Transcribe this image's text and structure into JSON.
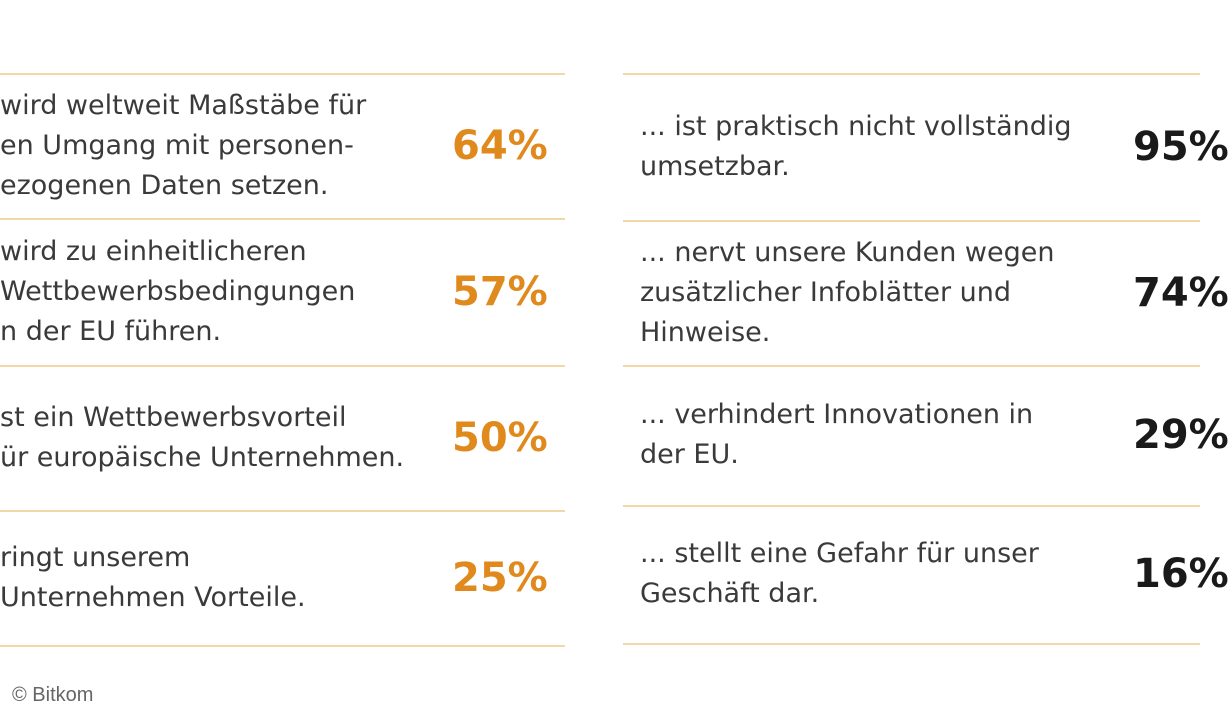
{
  "left": {
    "rows": [
      {
        "lines": [
          "wird weltweit Maßstäbe für",
          "en Umgang mit personen-",
          "ezogenen Daten setzen."
        ],
        "value": "64%"
      },
      {
        "lines": [
          "wird zu einheitlicheren",
          "Wettbewerbsbedingungen",
          "n der EU führen."
        ],
        "value": "57%"
      },
      {
        "lines": [
          "st ein Wettbewerbsvorteil",
          "ür europäische Unternehmen."
        ],
        "value": "50%"
      },
      {
        "lines": [
          "ringt unserem",
          "Unternehmen Vorteile."
        ],
        "value": "25%"
      }
    ]
  },
  "right": {
    "rows": [
      {
        "lines": [
          "... ist praktisch nicht vollständig",
          "umsetzbar."
        ],
        "value": "95%"
      },
      {
        "lines": [
          "... nervt unsere Kunden wegen",
          "zusätzlicher Infoblätter und",
          "Hinweise."
        ],
        "value": "74%"
      },
      {
        "lines": [
          "... verhindert Innovationen in",
          "der EU."
        ],
        "value": "29%"
      },
      {
        "lines": [
          "... stellt eine Gefahr für unser",
          "Geschäft dar."
        ],
        "value": "16%"
      }
    ]
  },
  "copyright": "© Bitkom"
}
